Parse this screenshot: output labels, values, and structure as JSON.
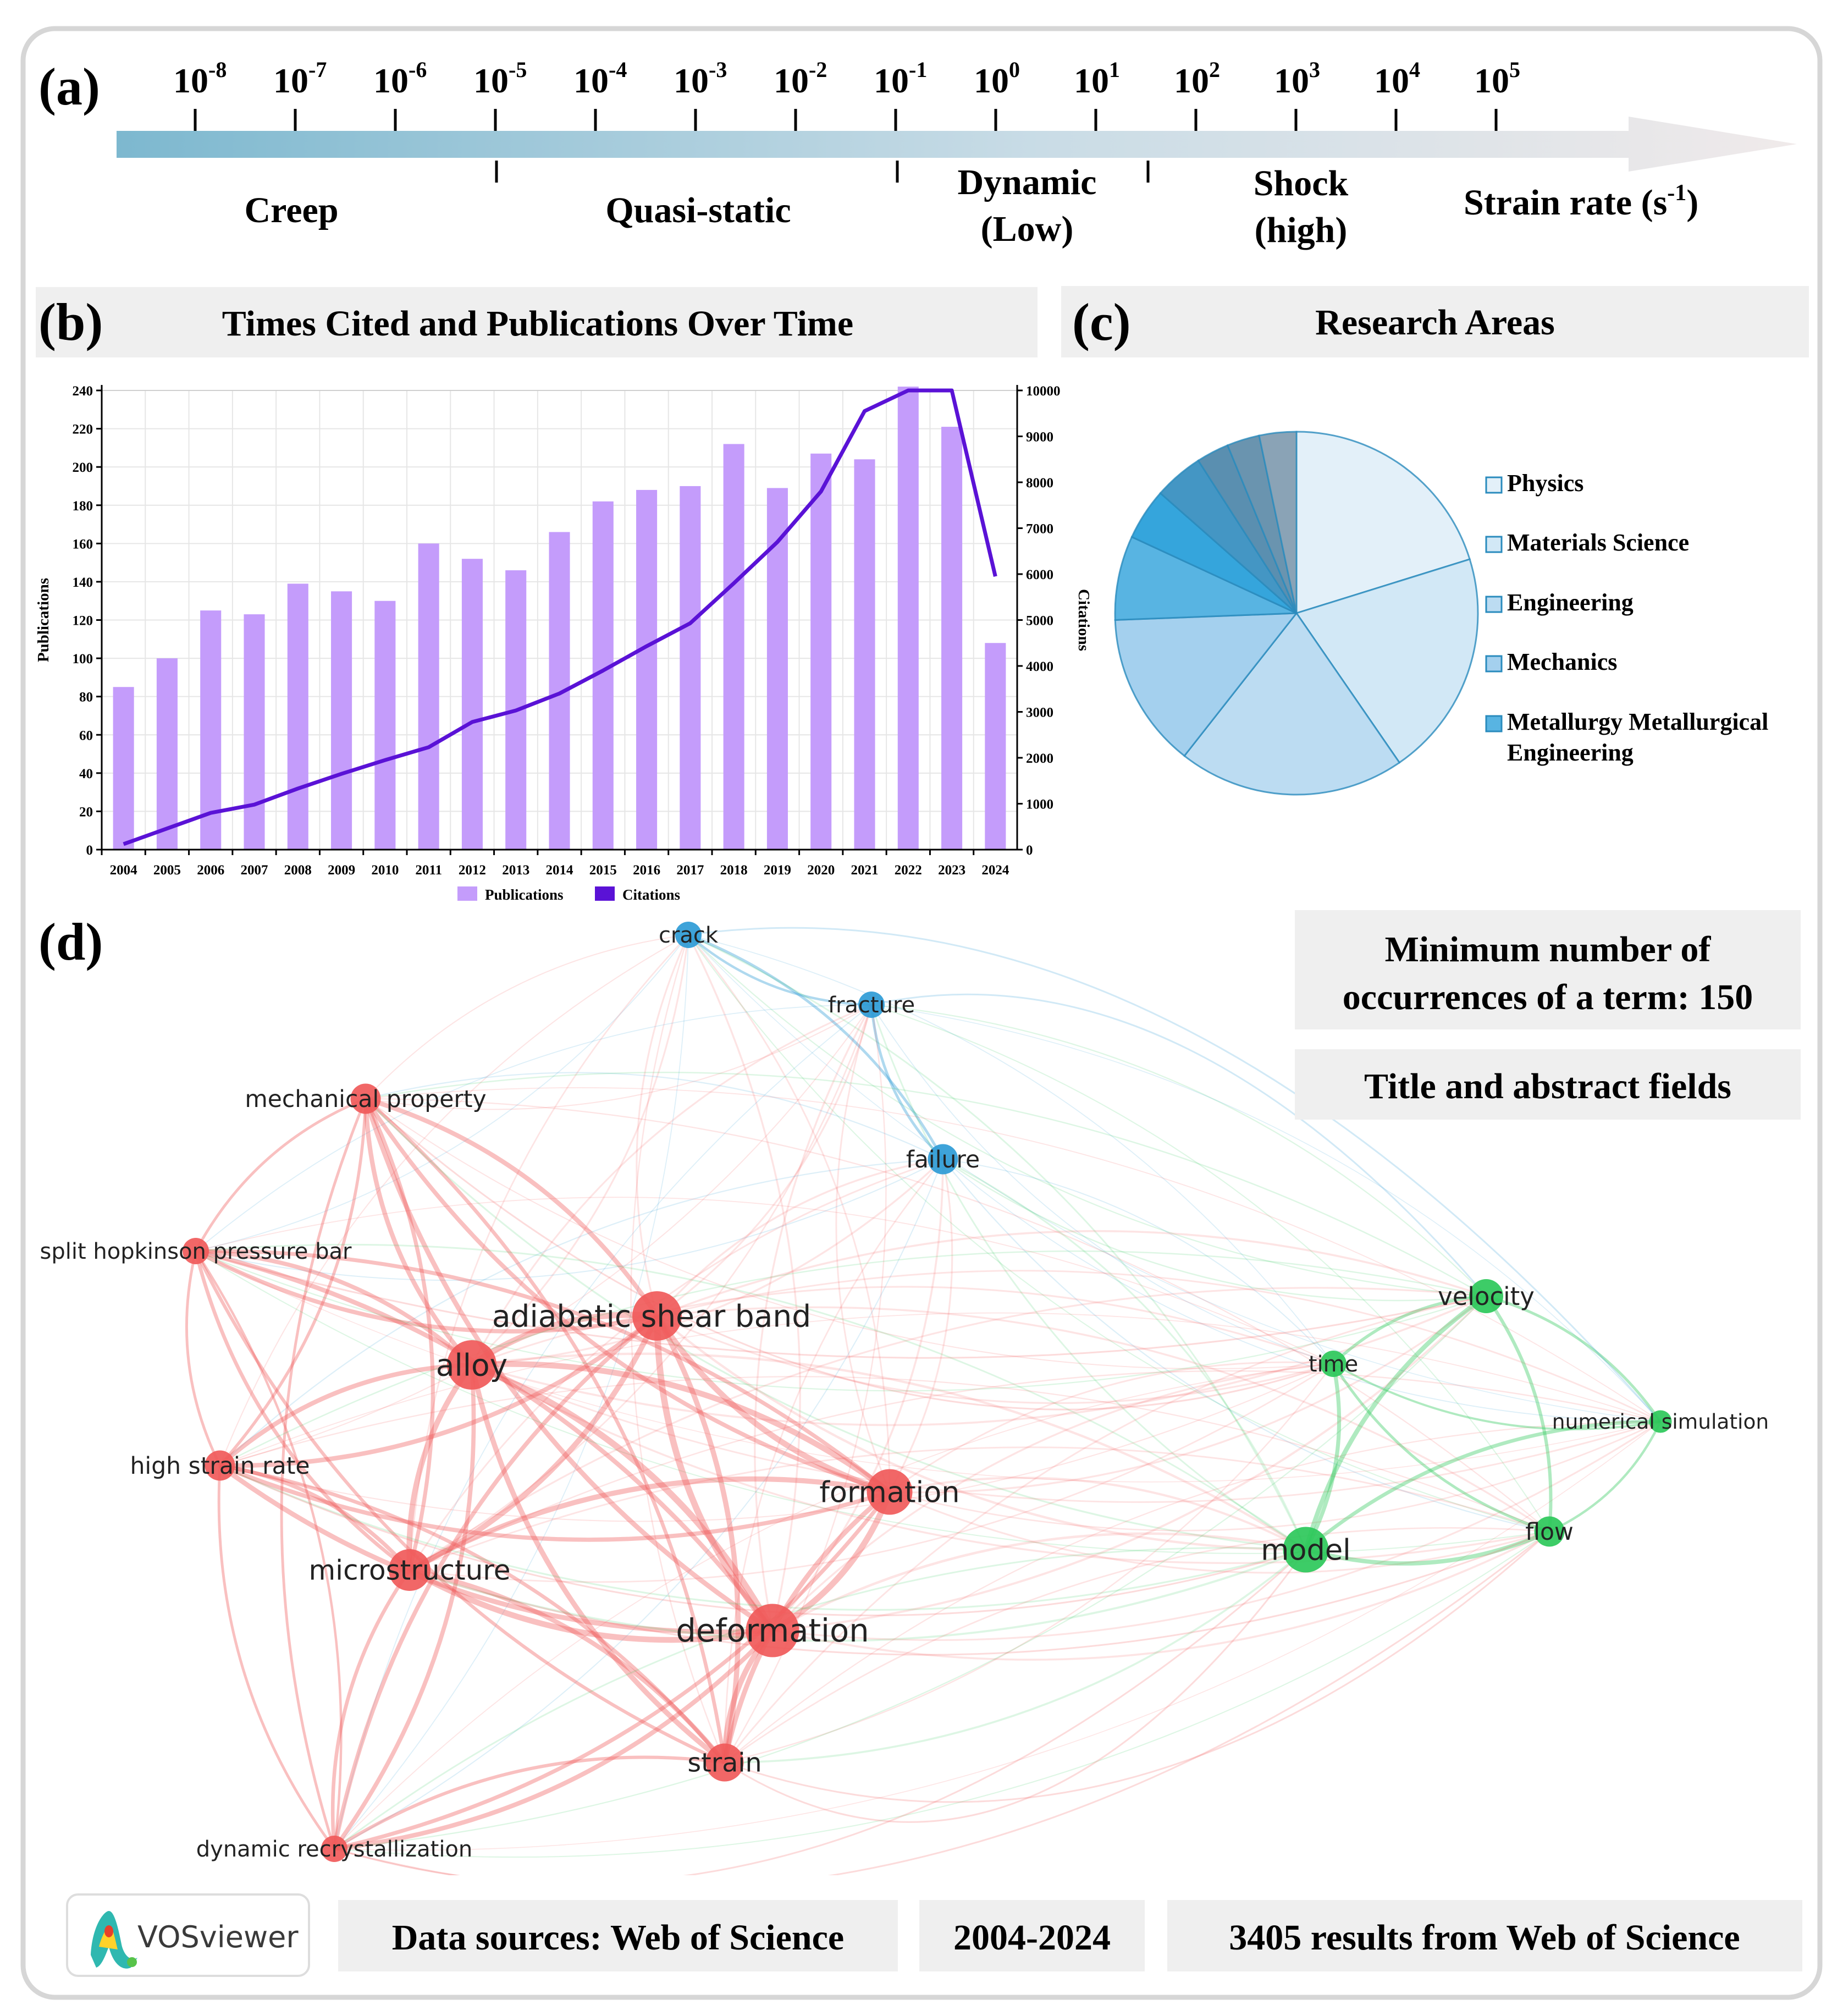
{
  "panel_labels": {
    "a": "(a)",
    "b": "(b)",
    "c": "(c)",
    "d": "(d)"
  },
  "strain_scale": {
    "base": "10",
    "exponents": [
      "-8",
      "-7",
      "-6",
      "-5",
      "-4",
      "-3",
      "-2",
      "-1",
      "0",
      "1",
      "2",
      "3",
      "4",
      "5"
    ],
    "regimes": [
      "Creep",
      "Quasi-static",
      "Dynamic",
      "(Low)",
      "Shock",
      "(high)"
    ],
    "axis_title": "Strain rate (s",
    "axis_title_sup": "-1",
    "axis_title_end": ")",
    "colors": {
      "start": "#7db8cf",
      "end": "#f0eaea"
    }
  },
  "panel_b": {
    "header": "Times Cited and Publications Over Time"
  },
  "panel_c": {
    "header": "Research Areas"
  },
  "chart_data": [
    {
      "type": "bar",
      "title": "Times Cited and Publications Over Time",
      "categories": [
        "2004",
        "2005",
        "2006",
        "2007",
        "2008",
        "2009",
        "2010",
        "2011",
        "2012",
        "2013",
        "2014",
        "2015",
        "2016",
        "2017",
        "2018",
        "2019",
        "2020",
        "2021",
        "2022",
        "2023",
        "2024"
      ],
      "series": [
        {
          "name": "Publications",
          "type": "bar",
          "axis": "left",
          "color": "#c49cfb",
          "values": [
            85,
            100,
            125,
            123,
            139,
            135,
            130,
            160,
            152,
            146,
            166,
            182,
            188,
            190,
            212,
            189,
            207,
            204,
            242,
            221,
            108
          ]
        },
        {
          "name": "Citations",
          "type": "line",
          "axis": "right",
          "color": "#5a12d6",
          "values": [
            120,
            460,
            800,
            980,
            1330,
            1650,
            1950,
            2230,
            2780,
            3030,
            3400,
            3900,
            4430,
            4930,
            5800,
            6700,
            7800,
            9550,
            10000,
            10000,
            5950
          ]
        }
      ],
      "ylabel": "Publications",
      "ylim": [
        0,
        240
      ],
      "y_ticks": [
        0,
        20,
        40,
        60,
        80,
        100,
        120,
        140,
        160,
        180,
        200,
        220,
        240
      ],
      "y2label": "Citations",
      "y2lim": [
        0,
        10000
      ],
      "y2_ticks": [
        0,
        1000,
        2000,
        3000,
        4000,
        5000,
        6000,
        7000,
        8000,
        9000,
        10000
      ],
      "legend": [
        "Publications",
        "Citations"
      ],
      "legend_position": "bottom",
      "grid": true
    },
    {
      "type": "pie",
      "title": "Research Areas",
      "slices": [
        {
          "label": "Physics",
          "value": 20.2,
          "color": "#e3f0f9"
        },
        {
          "label": "Materials Science",
          "value": 20.2,
          "color": "#d2e8f6"
        },
        {
          "label": "Engineering",
          "value": 20.2,
          "color": "#bcdcf2"
        },
        {
          "label": "Mechanics",
          "value": 13.8,
          "color": "#a4d0ee"
        },
        {
          "label": "Metallurgy Metallurgical Engineering",
          "value": 7.5,
          "color": "#58b4e2"
        },
        {
          "label": "",
          "value": 4.6,
          "color": "#35a5dc"
        },
        {
          "label": "",
          "value": 4.4,
          "color": "#4496c4"
        },
        {
          "label": "",
          "value": 2.9,
          "color": "#5a8fb0"
        },
        {
          "label": "",
          "value": 2.9,
          "color": "#6a94af"
        },
        {
          "label": "",
          "value": 3.3,
          "color": "#8aa3b6"
        }
      ],
      "legend": [
        {
          "label": "Physics",
          "line2": ""
        },
        {
          "label": "Materials Science",
          "line2": ""
        },
        {
          "label": "Engineering",
          "line2": ""
        },
        {
          "label": "Mechanics",
          "line2": ""
        },
        {
          "label": "Metallurgy Metallurgical",
          "line2": "Engineering"
        }
      ],
      "legend_position": "right"
    }
  ],
  "network": {
    "colors": {
      "red": "#f05a5a",
      "blue": "#2e9bd6",
      "green": "#2cc85a"
    },
    "nodes": [
      {
        "id": "crack",
        "label": "crack",
        "cluster": "blue",
        "weight": 2
      },
      {
        "id": "fracture",
        "label": "fracture",
        "cluster": "blue",
        "weight": 2
      },
      {
        "id": "failure",
        "label": "failure",
        "cluster": "blue",
        "weight": 2.5
      },
      {
        "id": "mechanical-property",
        "label": "mechanical property",
        "cluster": "red",
        "weight": 2.5
      },
      {
        "id": "shpb",
        "label": "split hopkinson pressure bar",
        "cluster": "red",
        "weight": 2
      },
      {
        "id": "asb",
        "label": "adiabatic shear band",
        "cluster": "red",
        "weight": 5
      },
      {
        "id": "alloy",
        "label": "alloy",
        "cluster": "red",
        "weight": 5
      },
      {
        "id": "high-strain-rate",
        "label": "high strain rate",
        "cluster": "red",
        "weight": 2.5
      },
      {
        "id": "formation",
        "label": "formation",
        "cluster": "red",
        "weight": 4.5
      },
      {
        "id": "microstructure",
        "label": "microstructure",
        "cluster": "red",
        "weight": 4
      },
      {
        "id": "deformation",
        "label": "deformation",
        "cluster": "red",
        "weight": 5.5
      },
      {
        "id": "strain",
        "label": "strain",
        "cluster": "red",
        "weight": 3.5
      },
      {
        "id": "dynamic-recrystallization",
        "label": "dynamic recrystallization",
        "cluster": "red",
        "weight": 2
      },
      {
        "id": "velocity",
        "label": "velocity",
        "cluster": "green",
        "weight": 3
      },
      {
        "id": "time",
        "label": "time",
        "cluster": "green",
        "weight": 2
      },
      {
        "id": "numerical-simulation",
        "label": "numerical simulation",
        "cluster": "green",
        "weight": 1.5
      },
      {
        "id": "model",
        "label": "model",
        "cluster": "green",
        "weight": 4.5
      },
      {
        "id": "flow",
        "label": "flow",
        "cluster": "green",
        "weight": 2.5
      }
    ]
  },
  "info_boxes": {
    "min_occ_line1": "Minimum number of",
    "min_occ_line2": "occurrences of a term: 150",
    "fields": "Title and abstract fields",
    "source": "Data sources: Web of Science",
    "years": "2004-2024",
    "results": "3405 results from Web of Science",
    "vosviewer": "VOSviewer"
  }
}
